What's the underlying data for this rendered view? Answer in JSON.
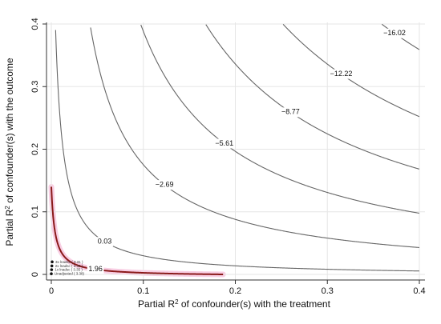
{
  "chart_data": {
    "type": "line",
    "title": "",
    "xlabel_main": "Partial R",
    "xlabel_sup": "2",
    "xlabel_rest": " of confounder(s) with the treatment",
    "ylabel_main": "Partial R",
    "ylabel_sup": "2",
    "ylabel_rest": " of confounder(s) with the outcome",
    "xlim": [
      0,
      0.4
    ],
    "ylim": [
      0,
      0.4
    ],
    "grid": true,
    "x_ticks": [
      "0",
      "0.1",
      "0.2",
      "0.3",
      "0.4"
    ],
    "y_ticks": [
      "0",
      "0.1",
      "0.2",
      "0.3",
      "0.4"
    ],
    "contours": [
      {
        "label": "1.96",
        "color": "#8b1a1a",
        "highlight": true,
        "label_x": 0.048,
        "label_y": 0.008
      },
      {
        "label": "0.03",
        "color": "#666666",
        "highlight": false,
        "label_x": 0.058,
        "label_y": 0.052
      },
      {
        "label": "−2.69",
        "color": "#666666",
        "highlight": false,
        "label_x": 0.123,
        "label_y": 0.143
      },
      {
        "label": "−5.61",
        "color": "#666666",
        "highlight": false,
        "label_x": 0.188,
        "label_y": 0.209
      },
      {
        "label": "−8.77",
        "color": "#666666",
        "highlight": false,
        "label_x": 0.26,
        "label_y": 0.259
      },
      {
        "label": "−12.22",
        "color": "#666666",
        "highlight": false,
        "label_x": 0.315,
        "label_y": 0.32
      },
      {
        "label": "−16.02",
        "color": "#666666",
        "highlight": false,
        "label_x": 0.373,
        "label_y": 0.385
      }
    ],
    "benchmarks": [
      {
        "label": "3x lnadsc ( 3.31 )",
        "x": 0.0009,
        "y": 0.02
      },
      {
        "label": "2x lnadsc ( 3.33 )",
        "x": 0.0006,
        "y": 0.0135
      },
      {
        "label": "1x lnadsc ( 3.35 )",
        "x": 0.0003,
        "y": 0.0075
      },
      {
        "label": "Unadjusted ( 3.38)",
        "x": 0.0,
        "y": 0.001
      }
    ]
  }
}
